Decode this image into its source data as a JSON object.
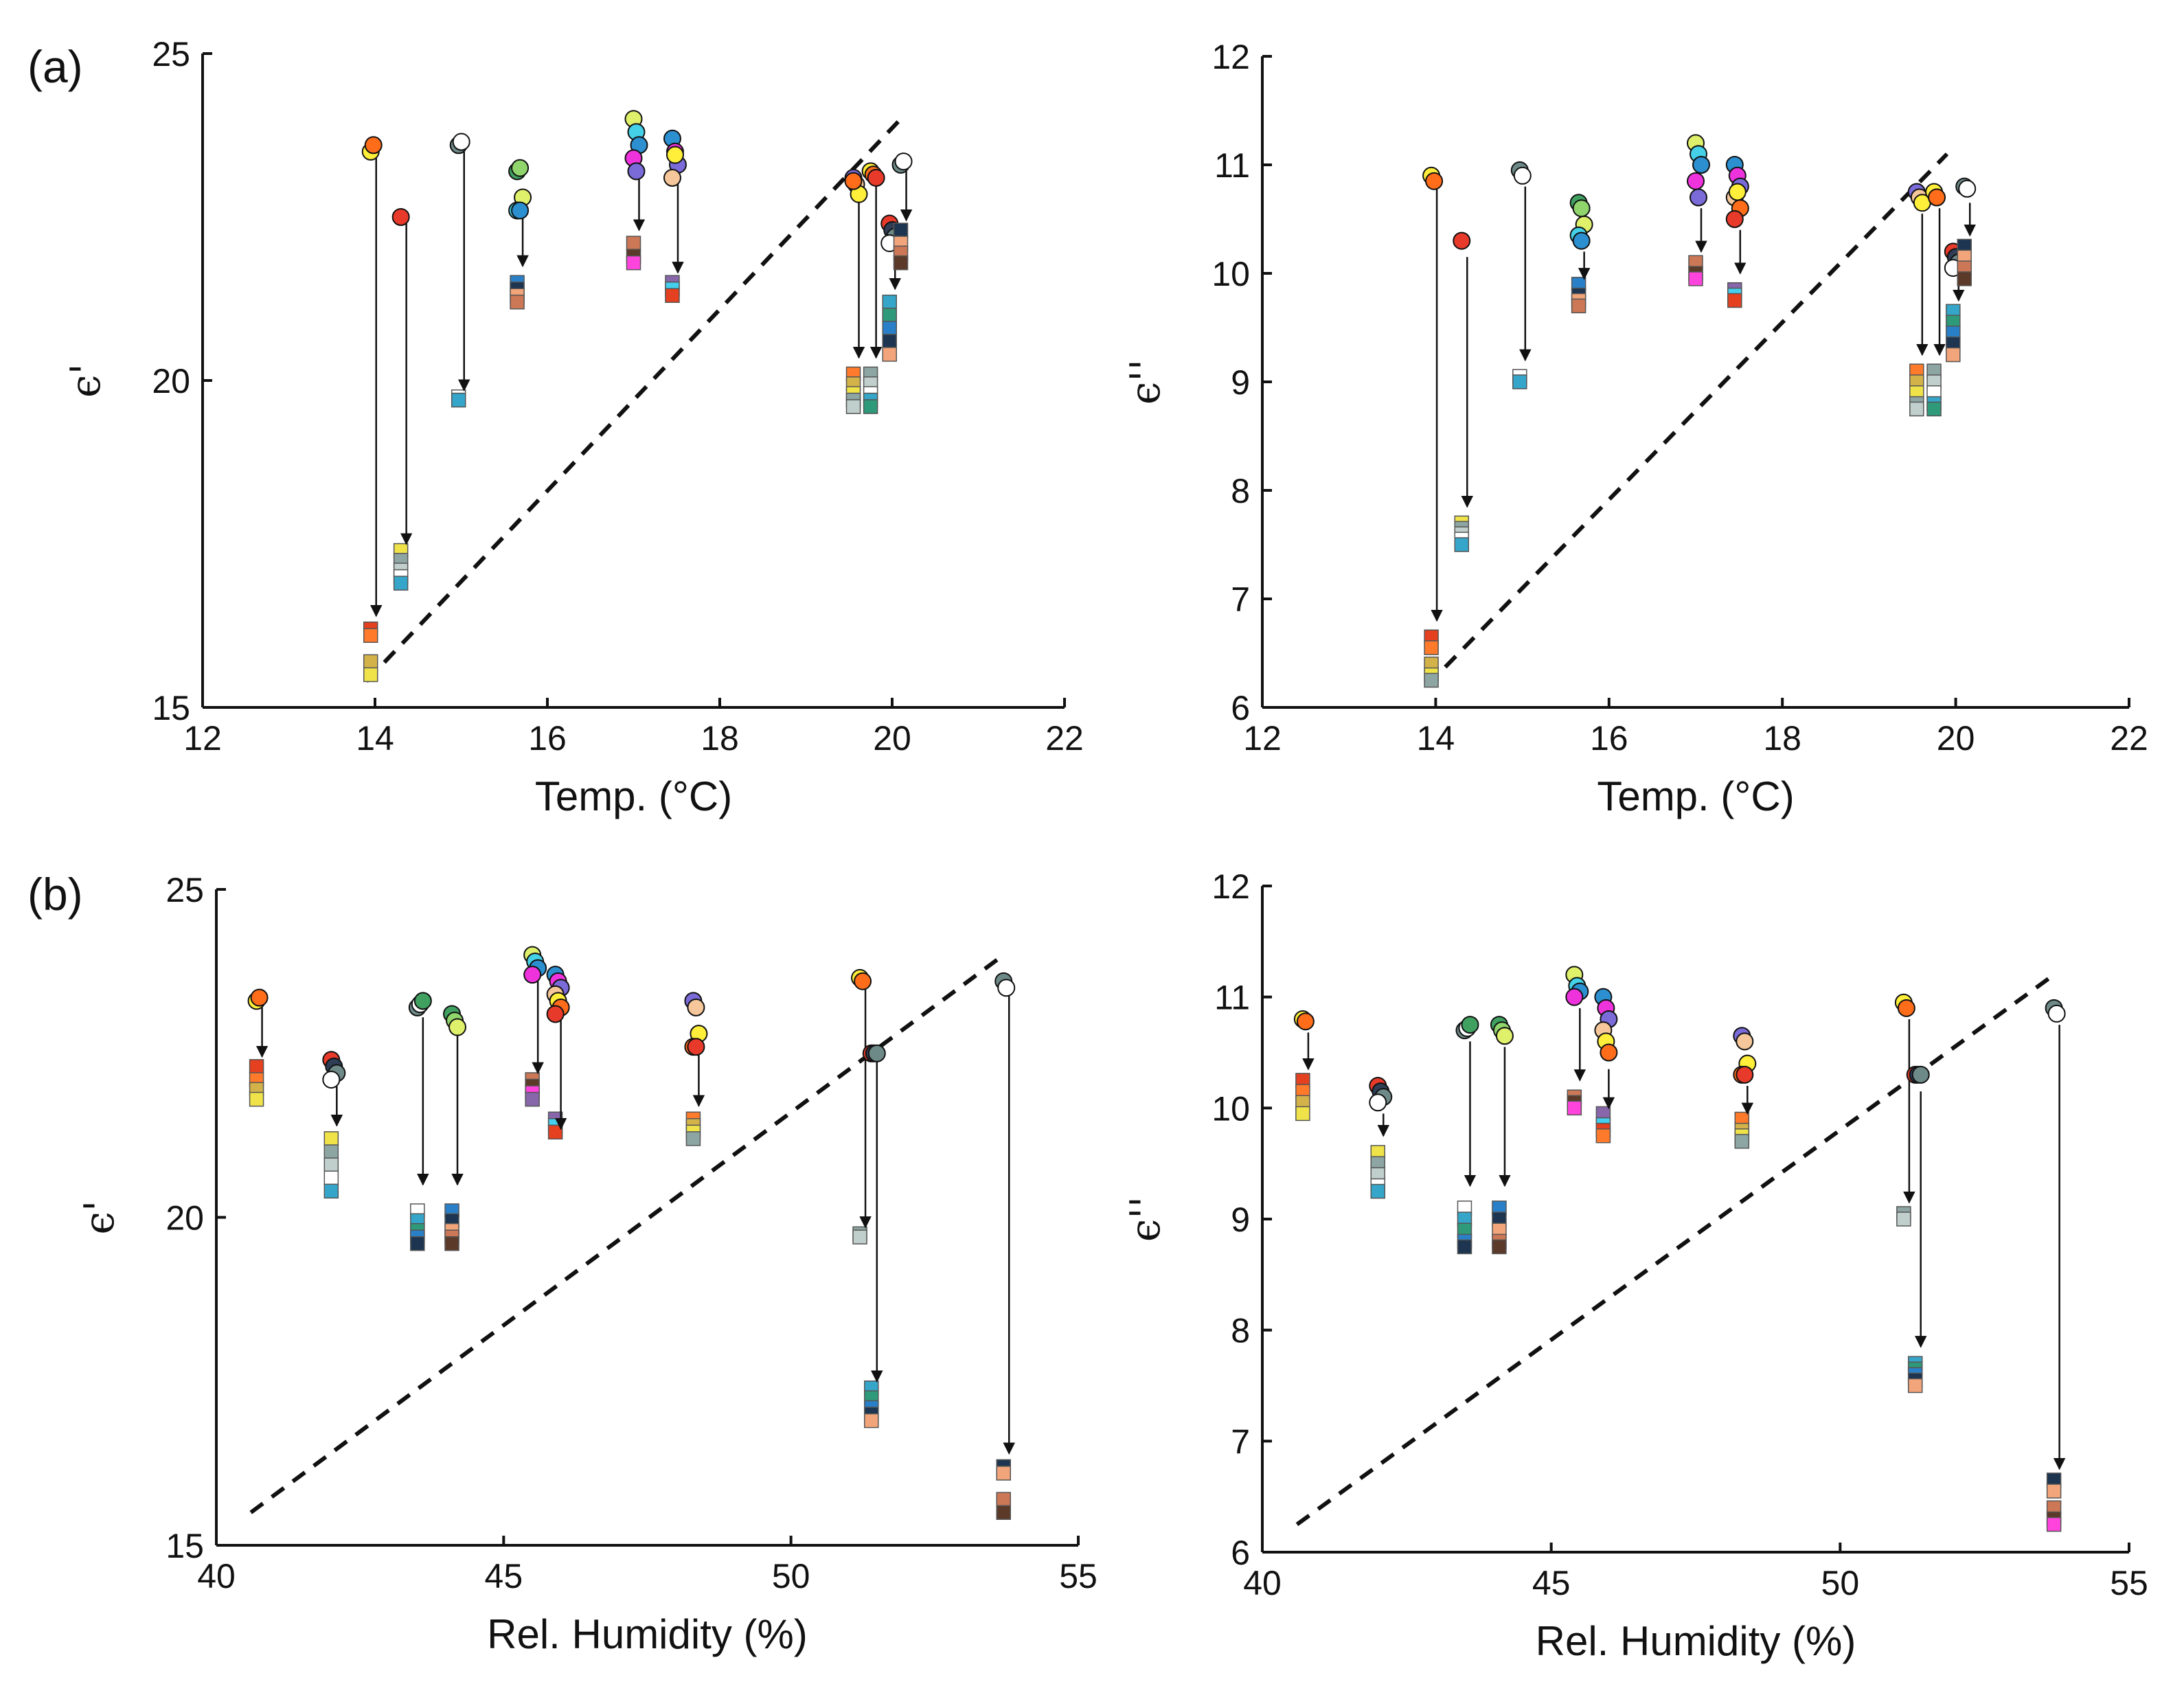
{
  "figure": {
    "panel_labels": [
      "(a)",
      "(b)"
    ],
    "circle_colors": [
      "#ffef3a",
      "#ff6d1a",
      "#e83a2a",
      "#2f3e55",
      "#6e8a88",
      "#ffffff",
      "#3fa060",
      "#8fd56b",
      "#dff06b",
      "#44d0e6",
      "#2b8fd0",
      "#ee33dd",
      "#7a6bd8",
      "#f5c79a"
    ],
    "square_colors": [
      "#e5401f",
      "#ff7a2a",
      "#d4b24a",
      "#f0e34a",
      "#8ea6a3",
      "#c0cfcc",
      "#ffffff",
      "#35a6c9",
      "#2f9a7a",
      "#2a80c8",
      "#1d3550",
      "#f2a57a",
      "#cc7755",
      "#5b3a2a",
      "#ff44dd",
      "#8866aa",
      "#44cfee"
    ]
  },
  "chart_data": [
    {
      "id": "a-left",
      "type": "scatter",
      "title": "",
      "xlabel": "Temp. (°C)",
      "ylabel": "ϵ'",
      "xlim": [
        12,
        22
      ],
      "ylim": [
        15,
        25
      ],
      "xticks": [
        "12",
        "14",
        "16",
        "18",
        "20",
        "22"
      ],
      "yticks": [
        "15",
        "20",
        "25"
      ],
      "ref_line": {
        "x": [
          13.9,
          20.1
        ],
        "y": [
          15.4,
          24.0
        ]
      },
      "groups": [
        {
          "x": 13.95,
          "circles": [
            23.5,
            23.6
          ],
          "squares": [
            16.2,
            16.1,
            15.7,
            15.5
          ],
          "arrow": [
            23.45,
            16.4
          ]
        },
        {
          "x": 14.3,
          "circles": [
            22.5
          ],
          "squares": [
            17.4,
            17.25,
            17.1,
            17.0,
            16.9
          ],
          "arrow": [
            22.4,
            17.5
          ]
        },
        {
          "x": 14.97,
          "circles": [
            23.6,
            23.65
          ],
          "squares": [
            19.75,
            19.7
          ],
          "arrow": [
            23.5,
            19.85
          ]
        },
        {
          "x": 15.65,
          "circles": [
            23.2,
            23.25,
            22.8,
            22.6,
            22.6
          ],
          "squares": [
            21.5,
            21.4,
            21.3,
            21.2
          ],
          "arrow": [
            22.5,
            21.75
          ]
        },
        {
          "x": 17.0,
          "circles": [
            24.0,
            23.8,
            23.6,
            23.4,
            23.2
          ],
          "squares": [
            22.1,
            21.9,
            21.8
          ],
          "arrow": [
            23.1,
            22.3
          ]
        },
        {
          "x": 17.45,
          "circles": [
            23.7,
            23.5,
            23.3,
            23.1,
            23.45
          ],
          "squares": [
            21.5,
            21.4,
            21.3
          ],
          "arrow": [
            23.0,
            21.65
          ]
        },
        {
          "x": 19.55,
          "circles": [
            23.1,
            23.0,
            22.85,
            23.05
          ],
          "squares": [
            20.1,
            19.95,
            19.8,
            19.7,
            19.6
          ],
          "arrow": [
            22.75,
            20.35
          ]
        },
        {
          "x": 19.75,
          "circles": [
            23.2,
            23.15,
            23.1
          ],
          "squares": [
            20.1,
            19.95,
            19.8,
            19.7,
            19.6
          ],
          "arrow": [
            23.05,
            20.35
          ]
        },
        {
          "x": 19.97,
          "circles": [
            22.4,
            22.3,
            22.2,
            22.1
          ],
          "squares": [
            21.2,
            21.0,
            20.8,
            20.6,
            20.4
          ],
          "arrow": [
            22.0,
            21.4
          ]
        },
        {
          "x": 20.1,
          "circles": [
            23.3,
            23.35
          ],
          "squares": [
            22.3,
            22.1,
            21.95,
            21.8
          ],
          "arrow": [
            23.2,
            22.45
          ]
        }
      ]
    },
    {
      "id": "a-right",
      "type": "scatter",
      "title": "",
      "xlabel": "Temp. (°C)",
      "ylabel": "ϵ''",
      "xlim": [
        12,
        22
      ],
      "ylim": [
        6,
        12
      ],
      "xticks": [
        "12",
        "14",
        "16",
        "18",
        "20",
        "22"
      ],
      "yticks": [
        "6",
        "7",
        "8",
        "9",
        "10",
        "11",
        "12"
      ],
      "ref_line": {
        "x": [
          13.9,
          19.9
        ],
        "y": [
          6.2,
          11.1
        ]
      },
      "groups": [
        {
          "x": 13.95,
          "circles": [
            10.9,
            10.85
          ],
          "squares": [
            6.65,
            6.55,
            6.4,
            6.3,
            6.25
          ],
          "arrow": [
            10.8,
            6.8
          ]
        },
        {
          "x": 14.3,
          "circles": [
            10.3
          ],
          "squares": [
            7.7,
            7.65,
            7.6,
            7.55,
            7.5
          ],
          "arrow": [
            10.15,
            7.85
          ]
        },
        {
          "x": 14.97,
          "circles": [
            10.95,
            10.9
          ],
          "squares": [
            9.05,
            9.0
          ],
          "arrow": [
            10.8,
            9.2
          ]
        },
        {
          "x": 15.65,
          "circles": [
            10.65,
            10.6,
            10.45,
            10.35,
            10.3
          ],
          "squares": [
            9.9,
            9.8,
            9.75,
            9.7
          ],
          "arrow": [
            10.2,
            9.95
          ]
        },
        {
          "x": 17.0,
          "circles": [
            11.2,
            11.1,
            11.0,
            10.85,
            10.7
          ],
          "squares": [
            10.1,
            10.0,
            9.95
          ],
          "arrow": [
            10.6,
            10.2
          ]
        },
        {
          "x": 17.45,
          "circles": [
            11.0,
            10.9,
            10.8,
            10.7,
            10.75,
            10.6,
            10.5
          ],
          "squares": [
            9.85,
            9.8,
            9.75
          ],
          "arrow": [
            10.4,
            10.0
          ]
        },
        {
          "x": 19.55,
          "circles": [
            10.75,
            10.7,
            10.65
          ],
          "squares": [
            9.1,
            9.0,
            8.9,
            8.8,
            8.75
          ],
          "arrow": [
            10.55,
            9.25
          ]
        },
        {
          "x": 19.75,
          "circles": [
            10.75,
            10.7
          ],
          "squares": [
            9.1,
            9.0,
            8.9,
            8.8,
            8.75
          ],
          "arrow": [
            10.6,
            9.25
          ]
        },
        {
          "x": 19.97,
          "circles": [
            10.2,
            10.15,
            10.1,
            10.05
          ],
          "squares": [
            9.65,
            9.55,
            9.45,
            9.35,
            9.25
          ],
          "arrow": [
            9.95,
            9.75
          ]
        },
        {
          "x": 20.1,
          "circles": [
            10.8,
            10.78
          ],
          "squares": [
            10.25,
            10.15,
            10.05,
            9.95
          ],
          "arrow": [
            10.65,
            10.35
          ]
        }
      ]
    },
    {
      "id": "b-left",
      "type": "scatter",
      "title": "",
      "xlabel": "Rel. Humidity (%)",
      "ylabel": "ϵ'",
      "xlim": [
        40,
        55
      ],
      "ylim": [
        15,
        25
      ],
      "xticks": [
        "40",
        "45",
        "50",
        "55"
      ],
      "yticks": [
        "15",
        "20",
        "25"
      ],
      "ref_line": {
        "x": [
          40.6,
          53.7
        ],
        "y": [
          15.5,
          24.0
        ]
      },
      "groups": [
        {
          "x": 40.7,
          "circles": [
            23.3,
            23.35
          ],
          "squares": [
            22.3,
            22.1,
            21.95,
            21.8
          ],
          "arrow": [
            23.2,
            22.45
          ]
        },
        {
          "x": 42.0,
          "circles": [
            22.4,
            22.3,
            22.2,
            22.1
          ],
          "squares": [
            21.2,
            21.0,
            20.8,
            20.6,
            20.4
          ],
          "arrow": [
            22.0,
            21.4
          ]
        },
        {
          "x": 43.5,
          "circles": [
            23.2,
            23.25,
            23.3
          ],
          "squares": [
            20.1,
            19.95,
            19.8,
            19.7,
            19.6
          ],
          "arrow": [
            23.05,
            20.5
          ]
        },
        {
          "x": 44.1,
          "circles": [
            23.1,
            23.0,
            22.9
          ],
          "squares": [
            20.1,
            19.95,
            19.8,
            19.7,
            19.6
          ],
          "arrow": [
            22.8,
            20.5
          ]
        },
        {
          "x": 45.5,
          "circles": [
            24.0,
            23.9,
            23.8,
            23.7
          ],
          "squares": [
            22.1,
            22.0,
            21.9,
            21.8
          ],
          "arrow": [
            23.6,
            22.2
          ]
        },
        {
          "x": 45.9,
          "circles": [
            23.7,
            23.6,
            23.5,
            23.4,
            23.3,
            23.2,
            23.1
          ],
          "squares": [
            21.5,
            21.4,
            21.3
          ],
          "arrow": [
            23.2,
            21.35
          ]
        },
        {
          "x": 48.3,
          "circles": [
            23.3,
            23.2,
            22.8,
            22.6,
            22.6
          ],
          "squares": [
            21.5,
            21.4,
            21.3,
            21.2
          ],
          "arrow": [
            22.5,
            21.7
          ]
        },
        {
          "x": 51.2,
          "circles": [
            23.65,
            23.6
          ],
          "squares": [
            19.75,
            19.7
          ],
          "arrow": [
            23.5,
            19.85
          ]
        },
        {
          "x": 51.4,
          "circles": [
            22.5,
            22.5,
            22.5
          ],
          "squares": [
            17.4,
            17.25,
            17.1,
            17.0,
            16.9
          ],
          "arrow": [
            22.4,
            17.5
          ]
        },
        {
          "x": 53.7,
          "circles": [
            23.6,
            23.5
          ],
          "squares": [
            16.2,
            16.1,
            15.7,
            15.5
          ],
          "arrow": [
            23.45,
            16.4
          ]
        }
      ]
    },
    {
      "id": "b-right",
      "type": "scatter",
      "title": "",
      "xlabel": "Rel. Humidity (%)",
      "ylabel": "ϵ''",
      "xlim": [
        40,
        55
      ],
      "ylim": [
        6,
        12
      ],
      "xticks": [
        "40",
        "45",
        "50",
        "55"
      ],
      "yticks": [
        "6",
        "7",
        "8",
        "9",
        "10",
        "11",
        "12"
      ],
      "ref_line": {
        "x": [
          40.6,
          53.7
        ],
        "y": [
          6.25,
          11.2
        ]
      },
      "groups": [
        {
          "x": 40.7,
          "circles": [
            10.8,
            10.78
          ],
          "squares": [
            10.25,
            10.15,
            10.05,
            9.95
          ],
          "arrow": [
            10.68,
            10.35
          ]
        },
        {
          "x": 42.0,
          "circles": [
            10.2,
            10.15,
            10.1,
            10.05
          ],
          "squares": [
            9.6,
            9.5,
            9.4,
            9.3,
            9.25
          ],
          "arrow": [
            9.95,
            9.75
          ]
        },
        {
          "x": 43.5,
          "circles": [
            10.7,
            10.72,
            10.75
          ],
          "squares": [
            9.1,
            9.0,
            8.9,
            8.8,
            8.75
          ],
          "arrow": [
            10.6,
            9.3
          ]
        },
        {
          "x": 44.1,
          "circles": [
            10.75,
            10.7,
            10.65
          ],
          "squares": [
            9.1,
            9.0,
            8.9,
            8.8,
            8.75
          ],
          "arrow": [
            10.55,
            9.3
          ]
        },
        {
          "x": 45.4,
          "circles": [
            11.2,
            11.1,
            11.05,
            11.0
          ],
          "squares": [
            10.1,
            10.05,
            10.0
          ],
          "arrow": [
            10.9,
            10.25
          ]
        },
        {
          "x": 45.9,
          "circles": [
            11.0,
            10.9,
            10.8,
            10.7,
            10.6,
            10.5
          ],
          "squares": [
            9.95,
            9.85,
            9.8,
            9.75
          ],
          "arrow": [
            10.35,
            10.0
          ]
        },
        {
          "x": 48.3,
          "circles": [
            10.65,
            10.6,
            10.4,
            10.3,
            10.3
          ],
          "squares": [
            9.9,
            9.8,
            9.75,
            9.7
          ],
          "arrow": [
            10.2,
            9.95
          ]
        },
        {
          "x": 51.1,
          "circles": [
            10.95,
            10.9
          ],
          "squares": [
            9.05,
            9.0
          ],
          "arrow": [
            10.8,
            9.15
          ]
        },
        {
          "x": 51.3,
          "circles": [
            10.3,
            10.3,
            10.3
          ],
          "squares": [
            7.7,
            7.65,
            7.6,
            7.55,
            7.5
          ],
          "arrow": [
            10.15,
            7.85
          ]
        },
        {
          "x": 53.7,
          "circles": [
            10.9,
            10.85
          ],
          "squares": [
            6.65,
            6.55,
            6.4,
            6.3,
            6.25
          ],
          "arrow": [
            10.75,
            6.75
          ]
        }
      ]
    }
  ]
}
